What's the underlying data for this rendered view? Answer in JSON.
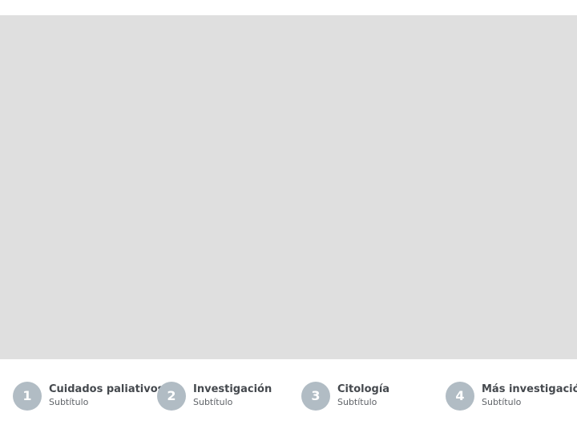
{
  "colors": {
    "hero_background": "#dfdfdf",
    "step_circle": "#b1bcc4",
    "step_title": "#45494e",
    "step_subtitle": "#5f6368"
  },
  "steps": [
    {
      "number": "1",
      "title": "Cuidados paliativos",
      "subtitle": "Subtítulo"
    },
    {
      "number": "2",
      "title": "Investigación",
      "subtitle": "Subtítulo"
    },
    {
      "number": "3",
      "title": "Citología",
      "subtitle": "Subtítulo"
    },
    {
      "number": "4",
      "title": "Más investigación",
      "subtitle": "Subtítulo"
    }
  ]
}
